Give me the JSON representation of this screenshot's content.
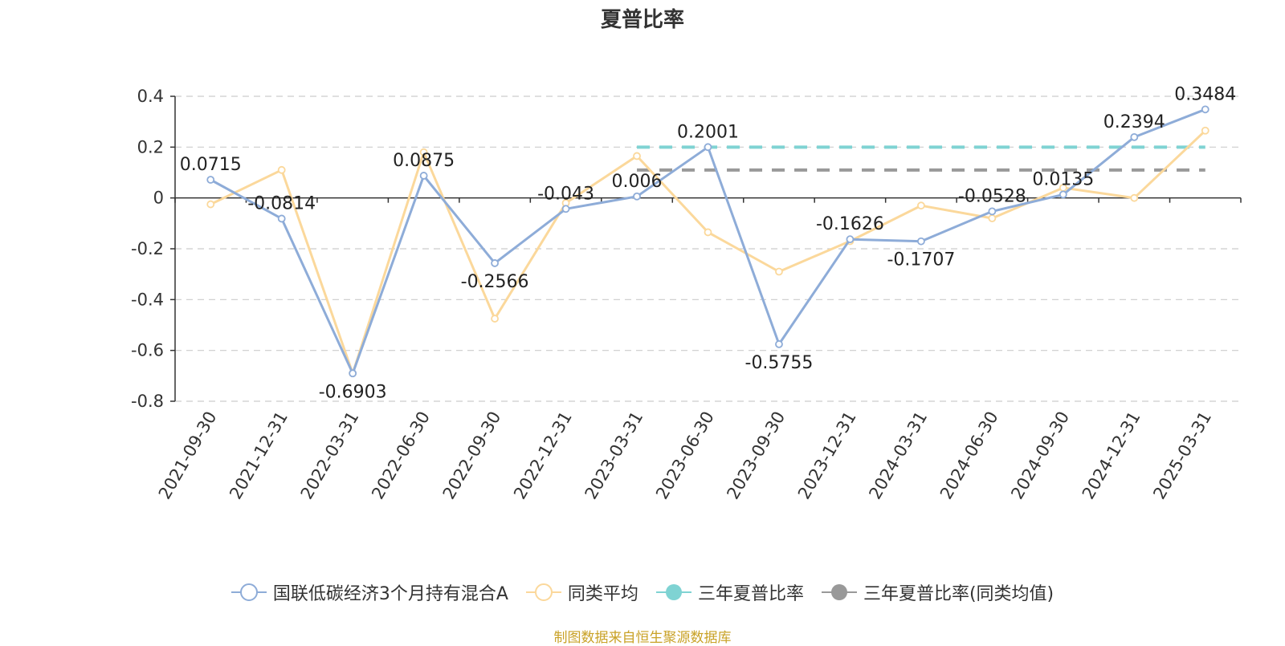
{
  "title": "夏普比率",
  "source_note": "制图数据来自恒生聚源数据库",
  "colors": {
    "fund": "#8eacd8",
    "peer": "#fbd89b",
    "three_year": "#7fd3d3",
    "three_year_peer": "#999999",
    "axis": "#333333",
    "grid": "#cccccc",
    "label": "#222222",
    "footer": "#c9a227"
  },
  "legend": [
    {
      "name": "国联低碳经济3个月持有混合A",
      "icon": "hollow-circle-line-icon",
      "color": "#8eacd8"
    },
    {
      "name": "同类平均",
      "icon": "hollow-circle-line-icon",
      "color": "#fbd89b"
    },
    {
      "name": "三年夏普比率",
      "icon": "filled-circle-line-icon",
      "color": "#7fd3d3"
    },
    {
      "name": "三年夏普比率(同类均值)",
      "icon": "filled-circle-line-icon",
      "color": "#999999"
    }
  ],
  "chart_data": {
    "type": "line",
    "title": "夏普比率",
    "categories": [
      "2021-09-30",
      "2021-12-31",
      "2022-03-31",
      "2022-06-30",
      "2022-09-30",
      "2022-12-31",
      "2023-03-31",
      "2023-06-30",
      "2023-09-30",
      "2023-12-31",
      "2024-03-31",
      "2024-06-30",
      "2024-09-30",
      "2024-12-31",
      "2025-03-31"
    ],
    "ylim": [
      -0.8,
      0.4
    ],
    "yticks": [
      0.4,
      0.2,
      0,
      -0.2,
      -0.4,
      -0.6,
      -0.8
    ],
    "grid": true,
    "legend_position": "bottom",
    "series": [
      {
        "name": "国联低碳经济3个月持有混合A",
        "values": [
          0.0715,
          -0.0814,
          -0.6903,
          0.0875,
          -0.2566,
          -0.043,
          0.006,
          0.2001,
          -0.5755,
          -0.1626,
          -0.1707,
          -0.0528,
          0.0135,
          0.2394,
          0.3484
        ],
        "labels": [
          "0.0715",
          "-0.0814",
          "-0.6903",
          "0.0875",
          "-0.2566",
          "-0.043",
          "0.006",
          "0.2001",
          "-0.5755",
          "-0.1626",
          "-0.1707",
          "-0.0528",
          "0.0135",
          "0.2394",
          "0.3484"
        ]
      },
      {
        "name": "同类平均",
        "values": [
          -0.025,
          0.11,
          -0.69,
          0.18,
          -0.475,
          -0.02,
          0.165,
          -0.135,
          -0.29,
          -0.17,
          -0.03,
          -0.08,
          0.04,
          0.0,
          0.265
        ]
      },
      {
        "name": "三年夏普比率",
        "style": "dashed",
        "x_range": [
          "2023-03-31",
          "2025-03-31"
        ],
        "value": 0.2
      },
      {
        "name": "三年夏普比率(同类均值)",
        "style": "dashed",
        "x_range": [
          "2023-03-31",
          "2025-03-31"
        ],
        "value": 0.11
      }
    ]
  }
}
